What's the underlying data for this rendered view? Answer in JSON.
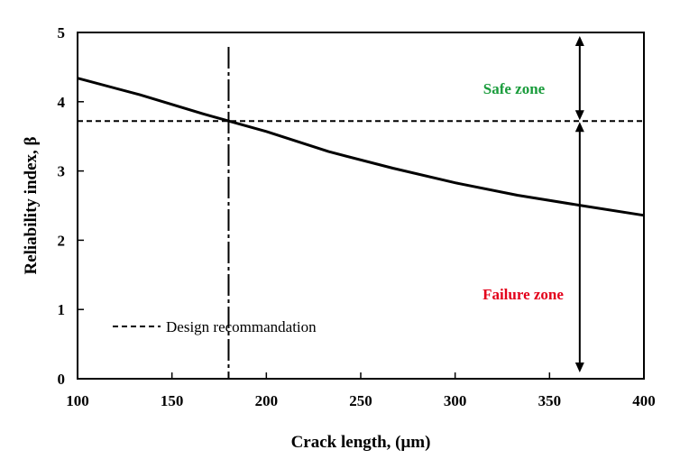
{
  "chart_data": {
    "type": "line",
    "xlabel": "Crack length, (μm)",
    "ylabel": "Reliability index, β",
    "xlim": [
      100,
      400
    ],
    "ylim": [
      0,
      5
    ],
    "xticks": [
      "100",
      "150",
      "200",
      "250",
      "300",
      "350",
      "400"
    ],
    "yticks": [
      "0",
      "1",
      "2",
      "3",
      "4",
      "5"
    ],
    "grid": false,
    "series": [
      {
        "x": [
          100,
          133,
          167,
          200,
          233,
          267,
          300,
          333,
          367,
          400
        ],
        "y": [
          4.34,
          4.1,
          3.82,
          3.57,
          3.28,
          3.04,
          2.83,
          2.65,
          2.5,
          2.36
        ],
        "color": "#000000"
      }
    ],
    "design_recommendation": {
      "legend_label": "Design recommandation",
      "beta": 3.72,
      "crack_length": 180
    },
    "zones": {
      "safe": {
        "label": "Safe zone",
        "color": "#1a9c3c"
      },
      "failure": {
        "label": "Failure zone",
        "color": "#e3001b"
      },
      "arrow_x": 366
    }
  }
}
